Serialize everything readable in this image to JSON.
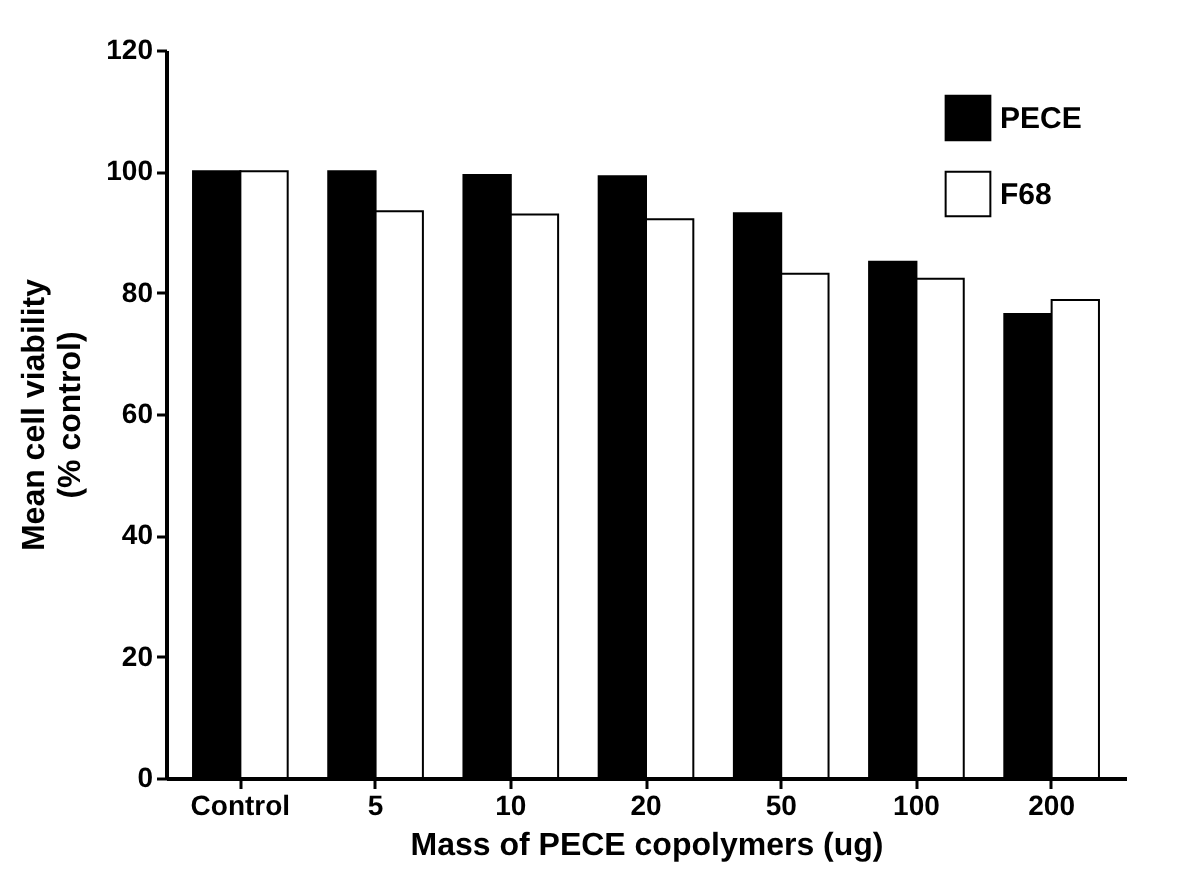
{
  "chart_data": {
    "type": "bar",
    "xlabel": "Mass of PECE copolymers (ug)",
    "ylabel": "Mean cell viability\n(% control)",
    "categories": [
      "Control",
      "5",
      "10",
      "20",
      "50",
      "100",
      "200"
    ],
    "series": [
      {
        "name": "PECE",
        "color": "#000000",
        "values": [
          100,
          100,
          99.4,
          99.2,
          93.1,
          85.1,
          76.5
        ]
      },
      {
        "name": "F68",
        "color": "#ffffff",
        "values": [
          100,
          93.4,
          92.9,
          92.1,
          83.1,
          82.3,
          78.8
        ]
      }
    ],
    "ylim": [
      0,
      120
    ],
    "yticks": [
      0,
      20,
      40,
      60,
      80,
      100,
      120
    ],
    "grid": false,
    "legend": "top right"
  }
}
